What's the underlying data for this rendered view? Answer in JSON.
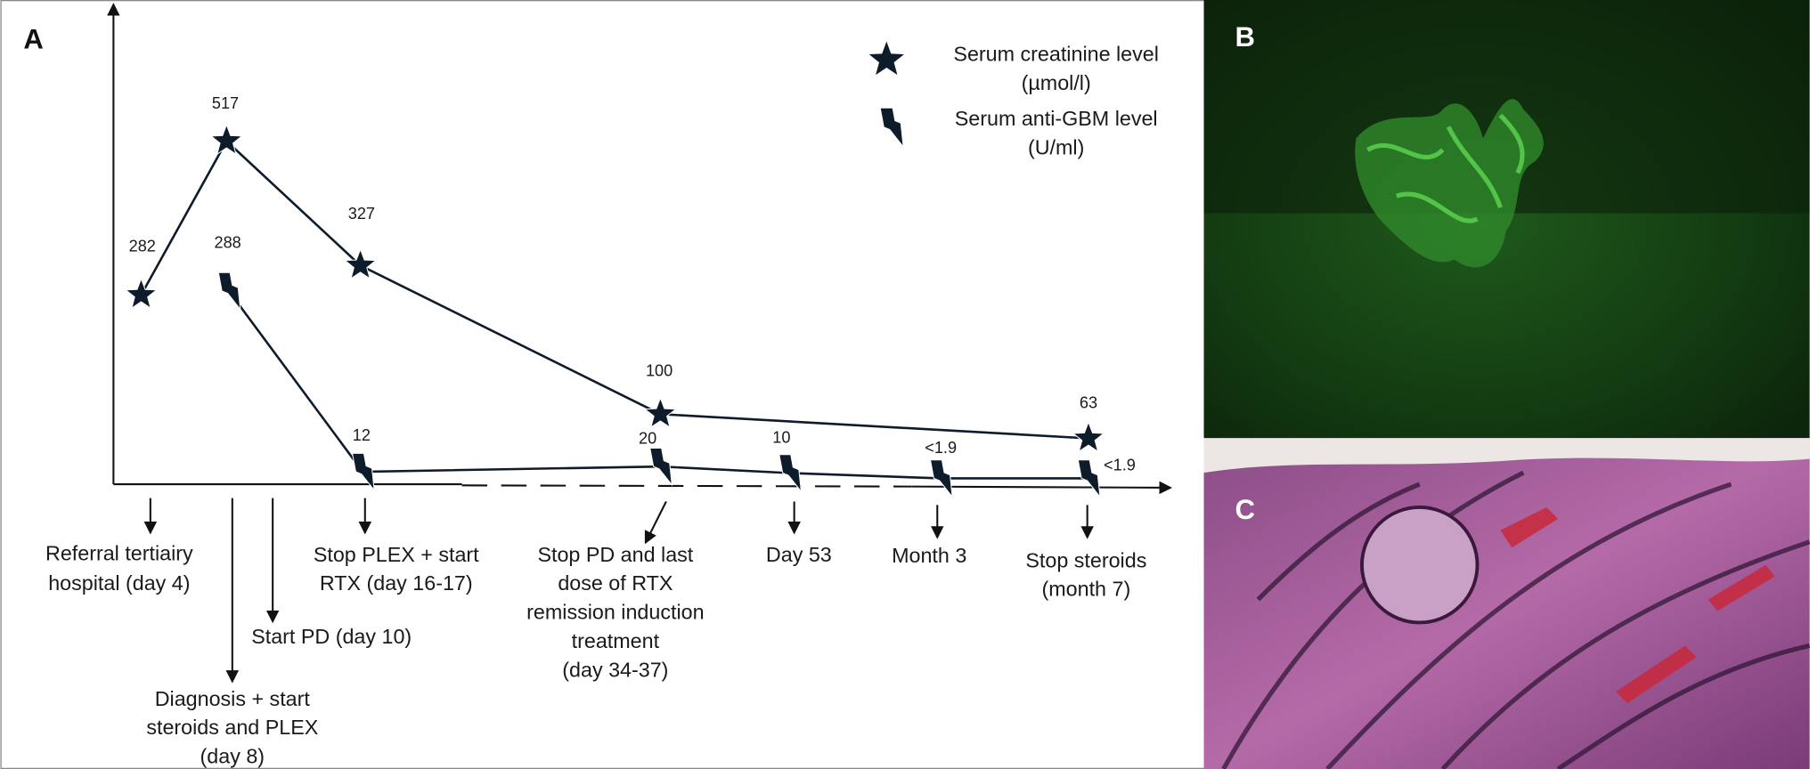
{
  "panel_a": {
    "label": "A",
    "series": [
      {
        "legend_lines": [
          "Serum creatinine level",
          "(µmol/l)"
        ],
        "marker": "star",
        "color": "#0d1b2a",
        "values": [
          282,
          517,
          327,
          100,
          63
        ]
      },
      {
        "legend_lines": [
          "Serum anti-GBM level",
          "(U/ml)"
        ],
        "marker": "bolt",
        "color": "#0d1b2a",
        "values": [
          288,
          12,
          20,
          10,
          1.9,
          1.9
        ],
        "value_labels": [
          "288",
          "12",
          "20",
          "10",
          "<1.9",
          "<1.9"
        ]
      }
    ],
    "events": [
      {
        "lines": [
          "Referral tertiairy",
          "hospital (day 4)"
        ]
      },
      {
        "lines": [
          "Diagnosis + start",
          "steroids and PLEX",
          "(day 8)"
        ]
      },
      {
        "lines": [
          "Start PD (day 10)"
        ]
      },
      {
        "lines": [
          "Stop PLEX + start",
          "RTX (day 16-17)"
        ]
      },
      {
        "lines": [
          "Stop PD and last",
          "dose of RTX",
          "remission induction",
          "treatment",
          "(day 34-37)"
        ]
      },
      {
        "lines": [
          "Day 53"
        ]
      },
      {
        "lines": [
          "Month 3"
        ]
      },
      {
        "lines": [
          "Stop steroids",
          "(month 7)"
        ]
      }
    ]
  },
  "panel_b": {
    "label": "B"
  },
  "panel_c": {
    "label": "C"
  }
}
